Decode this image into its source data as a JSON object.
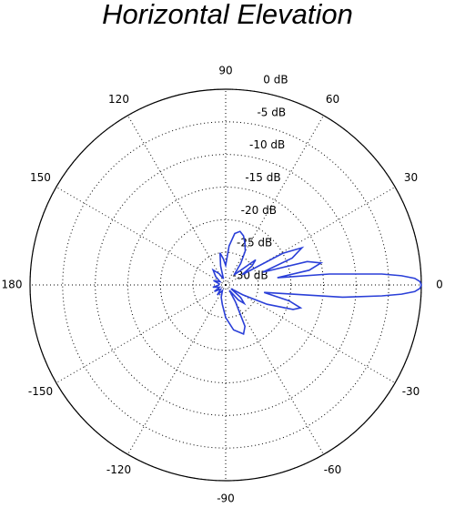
{
  "chart_data": {
    "type": "polar",
    "title": "Horizontal Elevation",
    "color": "#2a3fd8",
    "x": [
      -180,
      -170,
      -160,
      -150,
      -140,
      -130,
      -120,
      -110,
      -100,
      -90,
      -80,
      -70,
      -65,
      -60,
      -55,
      -50,
      -45,
      -40,
      -35,
      -30,
      -25,
      -20,
      -17,
      -14,
      -11,
      -8,
      -6,
      -4,
      -3,
      -2,
      -1,
      0,
      1,
      2,
      3,
      4,
      6,
      8,
      10,
      13,
      16,
      19,
      22,
      26,
      29,
      32,
      36,
      40,
      45,
      50,
      55,
      60,
      65,
      70,
      75,
      80,
      85,
      90,
      95,
      100,
      105,
      110,
      120,
      130,
      140,
      150,
      160,
      170,
      180
    ],
    "values": [
      -29,
      -28,
      -29,
      -28,
      -29,
      -28,
      -29,
      -28,
      -27,
      -25,
      -23,
      -22,
      -23,
      -27,
      -29,
      -27,
      -26,
      -27,
      -29,
      -27,
      -23,
      -19,
      -18,
      -20,
      -24,
      -20,
      -12,
      -6,
      -3,
      -1,
      -0.2,
      0,
      -0.2,
      -1,
      -3,
      -6,
      -14,
      -22,
      -17,
      -15,
      -17,
      -24,
      -19,
      -17,
      -20,
      -27,
      -25,
      -24,
      -27,
      -28,
      -26,
      -24,
      -23,
      -22,
      -21.5,
      -22,
      -24,
      -27,
      -26,
      -25,
      -27,
      -29,
      -28,
      -27,
      -28,
      -29,
      -28,
      -29,
      -29
    ],
    "xlim": [
      -180,
      180
    ],
    "xticks": [
      0,
      30,
      60,
      90,
      120,
      150,
      180,
      -150,
      -120,
      -90,
      -60,
      -30
    ],
    "ylim": [
      -30,
      0
    ],
    "yticks": [
      {
        "value": -30,
        "label": "-30 dB"
      },
      {
        "value": -25,
        "label": "-25 dB"
      },
      {
        "value": -20,
        "label": "-20 dB"
      },
      {
        "value": -15,
        "label": "-15 dB"
      },
      {
        "value": -10,
        "label": "-10 dB"
      },
      {
        "value": -5,
        "label": "-5 dB"
      },
      {
        "value": 0,
        "label": "0 dB"
      }
    ],
    "grid": true
  }
}
